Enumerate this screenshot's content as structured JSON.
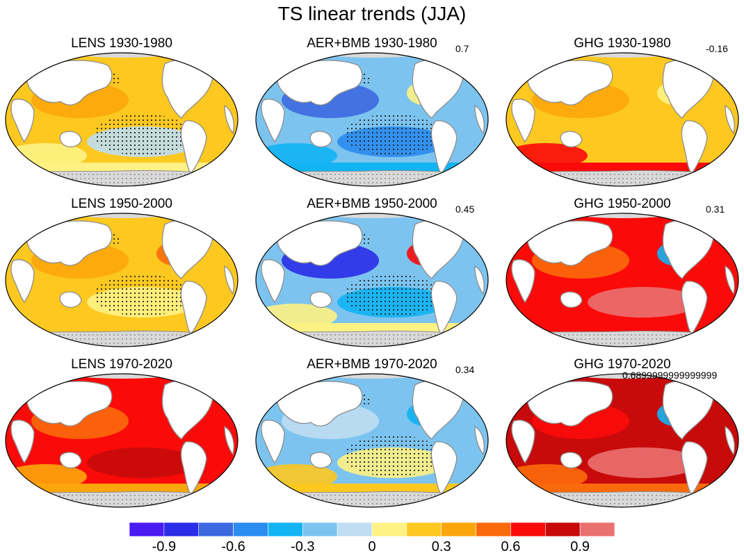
{
  "title": "TS linear trends (JJA)",
  "colors": {
    "scale": [
      "#4b1bf4",
      "#2a2ee8",
      "#3d69e0",
      "#2a8cf0",
      "#12b4f4",
      "#7cc4ef",
      "#bfdef2",
      "#fef284",
      "#fdc820",
      "#fca60c",
      "#fb6a0a",
      "#fb0a0a",
      "#c80a0a",
      "#eb7070"
    ],
    "land": "#ffffff",
    "antarctica": "#d9d9d9",
    "coast": "#8c8c8c"
  },
  "colorbar": {
    "ticks": [
      "-0.9",
      "-0.6",
      "-0.3",
      "0",
      "0.3",
      "0.6",
      "0.9"
    ]
  },
  "panels": [
    {
      "title": "LENS 1930-1980",
      "value": "",
      "base": 8,
      "pattern": [
        9,
        6,
        7,
        8
      ],
      "stipple": true
    },
    {
      "title": "AER+BMB 1930-1980",
      "value": "0.7",
      "base": 5,
      "pattern": [
        2,
        3,
        4,
        7
      ],
      "stipple": true
    },
    {
      "title": "GHG 1930-1980",
      "value": "-0.16",
      "base": 8,
      "pattern": [
        9,
        8,
        11,
        7
      ],
      "stipple": false
    },
    {
      "title": "LENS 1950-2000",
      "value": "",
      "base": 8,
      "pattern": [
        9,
        7,
        8,
        10
      ],
      "stipple": true
    },
    {
      "title": "AER+BMB 1950-2000",
      "value": "0.45",
      "base": 5,
      "pattern": [
        1,
        4,
        7,
        11
      ],
      "stipple": true
    },
    {
      "title": "GHG 1950-2000",
      "value": "0.31",
      "base": 11,
      "pattern": [
        10,
        13,
        11,
        4
      ],
      "stipple": false
    },
    {
      "title": "LENS 1970-2020",
      "value": "",
      "base": 11,
      "pattern": [
        10,
        12,
        9,
        11
      ],
      "stipple": false
    },
    {
      "title": "AER+BMB 1970-2020",
      "value": "0.34",
      "base": 5,
      "pattern": [
        6,
        7,
        8,
        4
      ],
      "stipple": true
    },
    {
      "title": "GHG 1970-2020",
      "value": "0.6899999999999999",
      "base": 12,
      "pattern": [
        11,
        13,
        10,
        4
      ],
      "stipple": false
    }
  ]
}
